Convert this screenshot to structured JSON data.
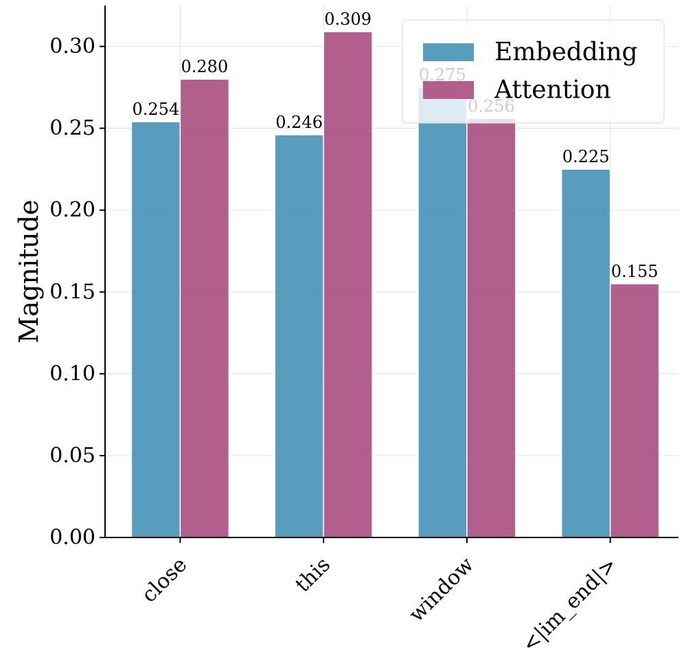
{
  "chart_data": {
    "type": "bar",
    "title": "",
    "xlabel": "",
    "ylabel": "Magnitude",
    "categories": [
      "close",
      "this",
      "window",
      "<|im_end|>"
    ],
    "series": [
      {
        "name": "Embedding",
        "values": [
          0.254,
          0.246,
          0.275,
          0.225
        ],
        "color": "#4a94b8"
      },
      {
        "name": "Attention",
        "values": [
          0.28,
          0.309,
          0.256,
          0.155
        ],
        "color": "#ac5183"
      }
    ],
    "data_labels": [
      [
        "0.254",
        "0.246",
        "0.275",
        "0.225"
      ],
      [
        "0.280",
        "0.309",
        "0.256",
        "0.155"
      ]
    ],
    "ylim": [
      0,
      0.325
    ],
    "yticks": [
      0.0,
      0.05,
      0.1,
      0.15,
      0.2,
      0.25,
      0.3
    ],
    "ytick_labels": [
      "0.00",
      "0.05",
      "0.10",
      "0.15",
      "0.20",
      "0.25",
      "0.30"
    ],
    "grid": true,
    "legend_position": "top-right"
  }
}
